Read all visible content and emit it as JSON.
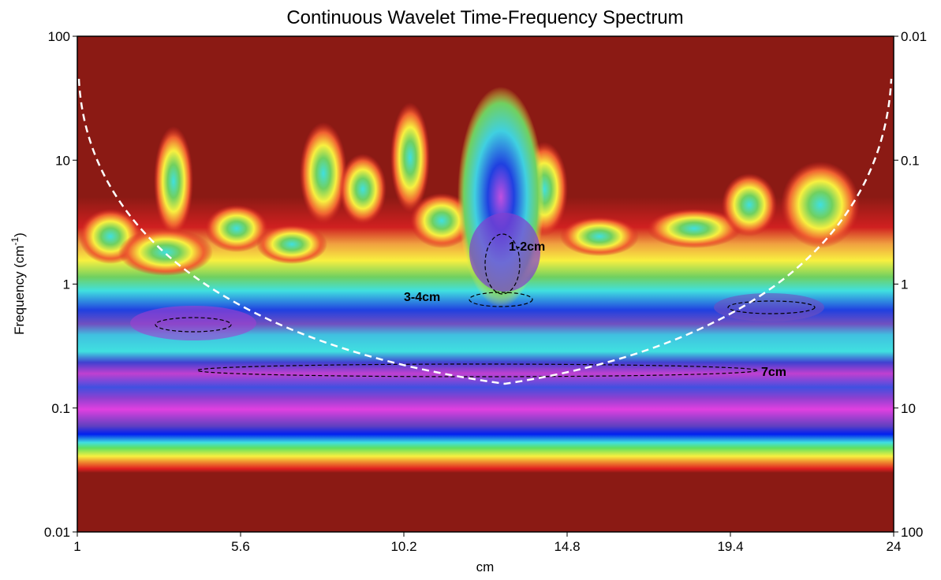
{
  "chart_data": {
    "type": "contour",
    "title": "Continuous Wavelet Time-Frequency Spectrum",
    "xlabel": "cm",
    "ylabel_parts": [
      "Frequency (cm",
      "-1",
      ")"
    ],
    "xlim": [
      1,
      24
    ],
    "xticks": [
      1,
      5.6,
      10.2,
      14.8,
      19.4,
      24
    ],
    "ylim": [
      0.01,
      100
    ],
    "yticks": [
      0.01,
      0.1,
      1,
      10,
      100
    ],
    "yscale": "log",
    "y2lim": [
      100,
      0.01
    ],
    "y2ticks": [
      100,
      10,
      1,
      0.1,
      0.01
    ],
    "y2scale": "log",
    "annotations": [
      "1-2cm",
      "3-4cm",
      "7cm"
    ]
  }
}
